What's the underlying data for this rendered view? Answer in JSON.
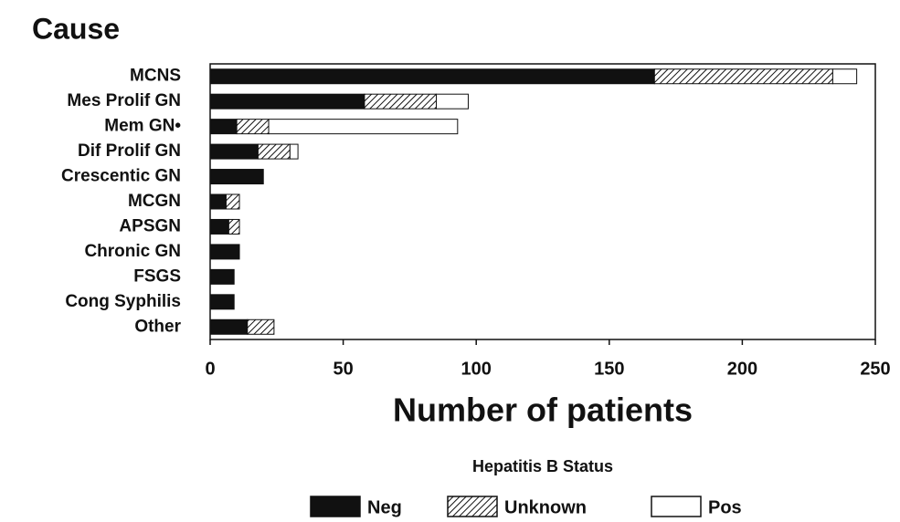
{
  "chart_data": {
    "type": "stacked_barh",
    "title": "Cause",
    "xlabel": "Number of patients",
    "legend_title": "Hepatitis B Status",
    "categories": [
      "MCNS",
      "Mes Prolif GN",
      "Mem GN•",
      "Dif Prolif GN",
      "Crescentic GN",
      "MCGN",
      "APSGN",
      "Chronic GN",
      "FSGS",
      "Cong Syphilis",
      "Other"
    ],
    "series": [
      {
        "name": "Neg",
        "color": "#111111",
        "values": [
          167,
          58,
          10,
          18,
          20,
          6,
          7,
          11,
          9,
          9,
          14
        ]
      },
      {
        "name": "Unknown",
        "color": "#111111",
        "pattern": "hatch",
        "values": [
          67,
          27,
          12,
          12,
          0,
          5,
          4,
          0,
          0,
          0,
          10
        ]
      },
      {
        "name": "Pos",
        "color": "#ffffff",
        "values": [
          9,
          12,
          71,
          3,
          0,
          0,
          0,
          0,
          0,
          0,
          0
        ]
      }
    ],
    "xlim": [
      0,
      250
    ],
    "xticks": [
      0,
      50,
      100,
      150,
      200,
      250
    ]
  }
}
